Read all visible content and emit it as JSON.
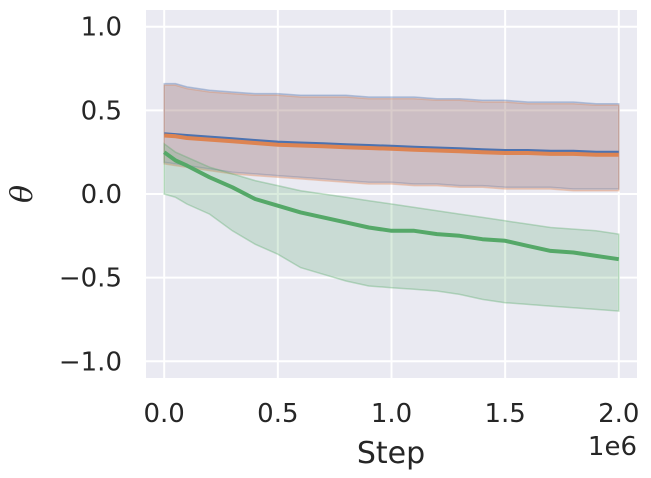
{
  "chart_data": {
    "type": "line",
    "title": "",
    "xlabel": "Step",
    "ylabel": "θ",
    "x_offset_label": "1e6",
    "xlim": [
      -0.08,
      2.08
    ],
    "ylim": [
      -1.1,
      1.1
    ],
    "xticks": [
      0.0,
      0.5,
      1.0,
      1.5,
      2.0
    ],
    "xtick_labels": [
      "0.0",
      "0.5",
      "1.0",
      "1.5",
      "2.0"
    ],
    "yticks": [
      -1.0,
      -0.5,
      0.0,
      0.5,
      1.0
    ],
    "ytick_labels": [
      "−1.0",
      "−0.5",
      "0.0",
      "0.5",
      "1.0"
    ],
    "grid": true,
    "x": [
      0.0,
      0.05,
      0.1,
      0.2,
      0.3,
      0.4,
      0.5,
      0.6,
      0.7,
      0.8,
      0.9,
      1.0,
      1.1,
      1.2,
      1.3,
      1.4,
      1.5,
      1.6,
      1.7,
      1.8,
      1.9,
      2.0
    ],
    "series": [
      {
        "color": "#4c72b0",
        "values": [
          0.36,
          0.355,
          0.35,
          0.34,
          0.33,
          0.32,
          0.31,
          0.305,
          0.3,
          0.295,
          0.29,
          0.285,
          0.28,
          0.275,
          0.27,
          0.265,
          0.26,
          0.26,
          0.255,
          0.255,
          0.25,
          0.25
        ],
        "band_upper": [
          0.66,
          0.66,
          0.64,
          0.62,
          0.61,
          0.6,
          0.6,
          0.59,
          0.59,
          0.59,
          0.58,
          0.58,
          0.58,
          0.57,
          0.57,
          0.56,
          0.56,
          0.55,
          0.55,
          0.55,
          0.54,
          0.54
        ],
        "band_lower": [
          0.19,
          0.18,
          0.17,
          0.15,
          0.13,
          0.12,
          0.11,
          0.1,
          0.09,
          0.08,
          0.07,
          0.07,
          0.06,
          0.06,
          0.05,
          0.05,
          0.04,
          0.04,
          0.04,
          0.03,
          0.03,
          0.03
        ]
      },
      {
        "color": "#dd8452",
        "values": [
          0.35,
          0.345,
          0.335,
          0.325,
          0.315,
          0.305,
          0.295,
          0.29,
          0.285,
          0.28,
          0.275,
          0.27,
          0.265,
          0.26,
          0.255,
          0.25,
          0.245,
          0.245,
          0.24,
          0.24,
          0.235,
          0.235
        ],
        "band_upper": [
          0.65,
          0.65,
          0.63,
          0.61,
          0.6,
          0.59,
          0.59,
          0.58,
          0.58,
          0.58,
          0.57,
          0.57,
          0.57,
          0.56,
          0.56,
          0.55,
          0.55,
          0.54,
          0.54,
          0.54,
          0.53,
          0.53
        ],
        "band_lower": [
          0.18,
          0.17,
          0.16,
          0.14,
          0.12,
          0.11,
          0.1,
          0.09,
          0.08,
          0.07,
          0.06,
          0.06,
          0.05,
          0.05,
          0.04,
          0.04,
          0.03,
          0.03,
          0.03,
          0.02,
          0.02,
          0.02
        ]
      },
      {
        "color": "#55a868",
        "values": [
          0.25,
          0.2,
          0.17,
          0.1,
          0.04,
          -0.03,
          -0.07,
          -0.11,
          -0.14,
          -0.17,
          -0.2,
          -0.22,
          -0.22,
          -0.24,
          -0.25,
          -0.27,
          -0.28,
          -0.31,
          -0.34,
          -0.35,
          -0.37,
          -0.39
        ],
        "band_upper": [
          0.3,
          0.25,
          0.22,
          0.16,
          0.12,
          0.08,
          0.05,
          0.02,
          0.0,
          -0.02,
          -0.04,
          -0.06,
          -0.08,
          -0.1,
          -0.12,
          -0.14,
          -0.16,
          -0.18,
          -0.2,
          -0.21,
          -0.22,
          -0.24
        ],
        "band_lower": [
          0.0,
          -0.02,
          -0.06,
          -0.12,
          -0.22,
          -0.3,
          -0.36,
          -0.44,
          -0.48,
          -0.52,
          -0.55,
          -0.56,
          -0.57,
          -0.58,
          -0.6,
          -0.63,
          -0.65,
          -0.66,
          -0.67,
          -0.68,
          -0.69,
          -0.7
        ]
      }
    ]
  }
}
